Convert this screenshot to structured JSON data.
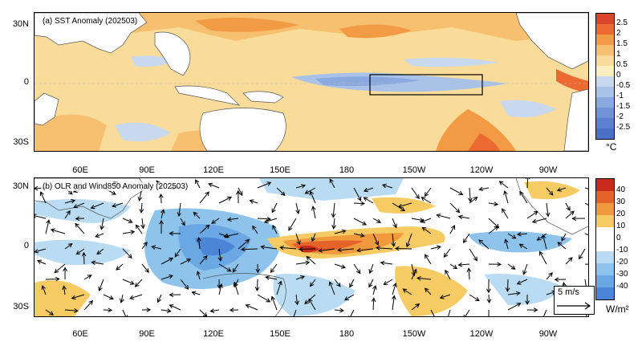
{
  "panel_a": {
    "title": "(a) SST Anomaly (202503)"
  },
  "panel_b": {
    "title": "(b) OLR and Wind850 Anomaly (202503)"
  },
  "lat_labels": [
    "30N",
    "0",
    "30S"
  ],
  "lon_labels": [
    "60E",
    "90E",
    "120E",
    "150E",
    "180",
    "150W",
    "120W",
    "90W"
  ],
  "colorbar_a": {
    "ticks": [
      "2.5",
      "2",
      "1.5",
      "1",
      "0.5",
      "0",
      "-0.5",
      "-1",
      "-1.5",
      "-2",
      "-2.5"
    ],
    "colors": [
      "#d9452a",
      "#ec6a32",
      "#f39a45",
      "#f7c071",
      "#f9dc9a",
      "#fbeec0",
      "#c8d8ef",
      "#a8c2e8",
      "#8aaadf",
      "#6f93d6",
      "#5a80cf",
      "#4a6fc6"
    ],
    "unit": "°C"
  },
  "colorbar_b": {
    "ticks": [
      "40",
      "30",
      "20",
      "10",
      "0",
      "-10",
      "-20",
      "-30",
      "-40"
    ],
    "colors": [
      "#c92a1c",
      "#e5622b",
      "#f09a3d",
      "#f7cb63",
      "#ffffff",
      "#ffffff",
      "#b9dcf3",
      "#8ec4ec",
      "#6aa7e3",
      "#4c84d6"
    ],
    "unit": "W/m²"
  },
  "wind_reference": {
    "label": "5 m/s"
  }
}
